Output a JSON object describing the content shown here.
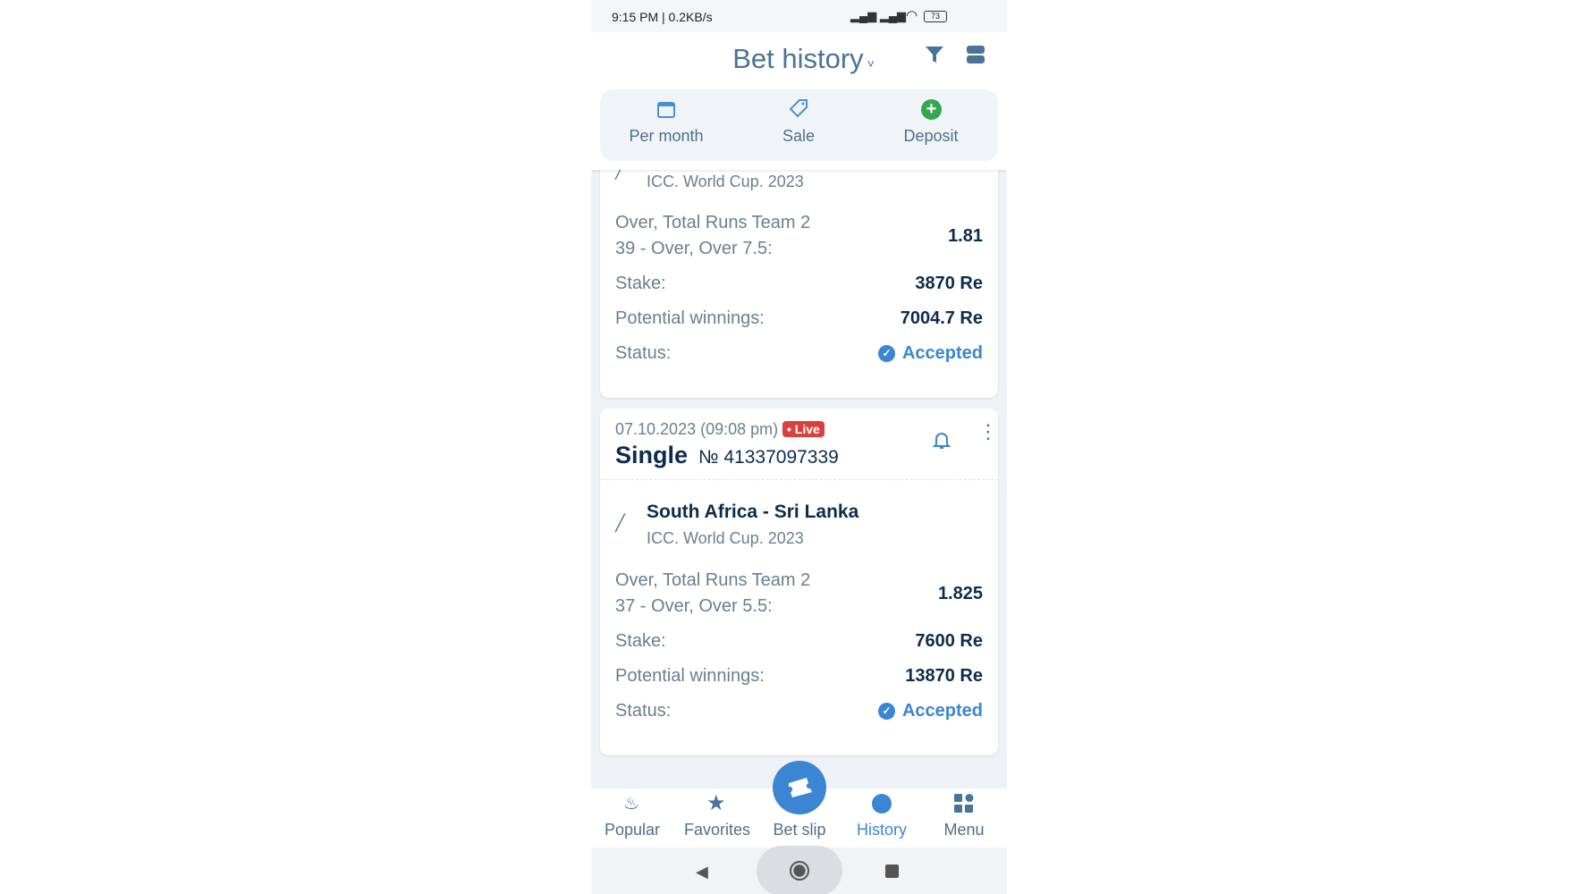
{
  "status_bar": {
    "time": "9:15 PM | 0.2KB/s",
    "battery": "73"
  },
  "header": {
    "title": "Bet history",
    "quick": [
      {
        "label": "Per month",
        "icon": "calendar-icon"
      },
      {
        "label": "Sale",
        "icon": "tag-icon"
      },
      {
        "label": "Deposit",
        "icon": "plus-circle-icon"
      }
    ]
  },
  "bets": [
    {
      "league": "ICC. World Cup. 2023",
      "market": [
        "Over, Total Runs Team 2",
        "39 - Over, Over 7.5:"
      ],
      "odds": "1.81",
      "stake_label": "Stake:",
      "stake": "3870 Re",
      "pw_label": "Potential winnings:",
      "pw": "7004.7 Re",
      "status_label": "Status:",
      "status": "Accepted"
    },
    {
      "date": "07.10.2023 (09:08 pm)",
      "live": "• Live",
      "type": "Single",
      "number": "№ 41337097339",
      "match": "South Africa - Sri Lanka",
      "league": "ICC. World Cup. 2023",
      "market": [
        "Over, Total Runs Team 2",
        "37 - Over, Over 5.5:"
      ],
      "odds": "1.825",
      "stake_label": "Stake:",
      "stake": "7600 Re",
      "pw_label": "Potential winnings:",
      "pw": "13870 Re",
      "status_label": "Status:",
      "status": "Accepted"
    }
  ],
  "nav": [
    {
      "label": "Popular"
    },
    {
      "label": "Favorites"
    },
    {
      "label": "Bet slip"
    },
    {
      "label": "History",
      "active": true
    },
    {
      "label": "Menu"
    }
  ],
  "colors": {
    "accent": "#3a86d4",
    "live": "#d9413f",
    "deposit": "#2fa84f"
  }
}
